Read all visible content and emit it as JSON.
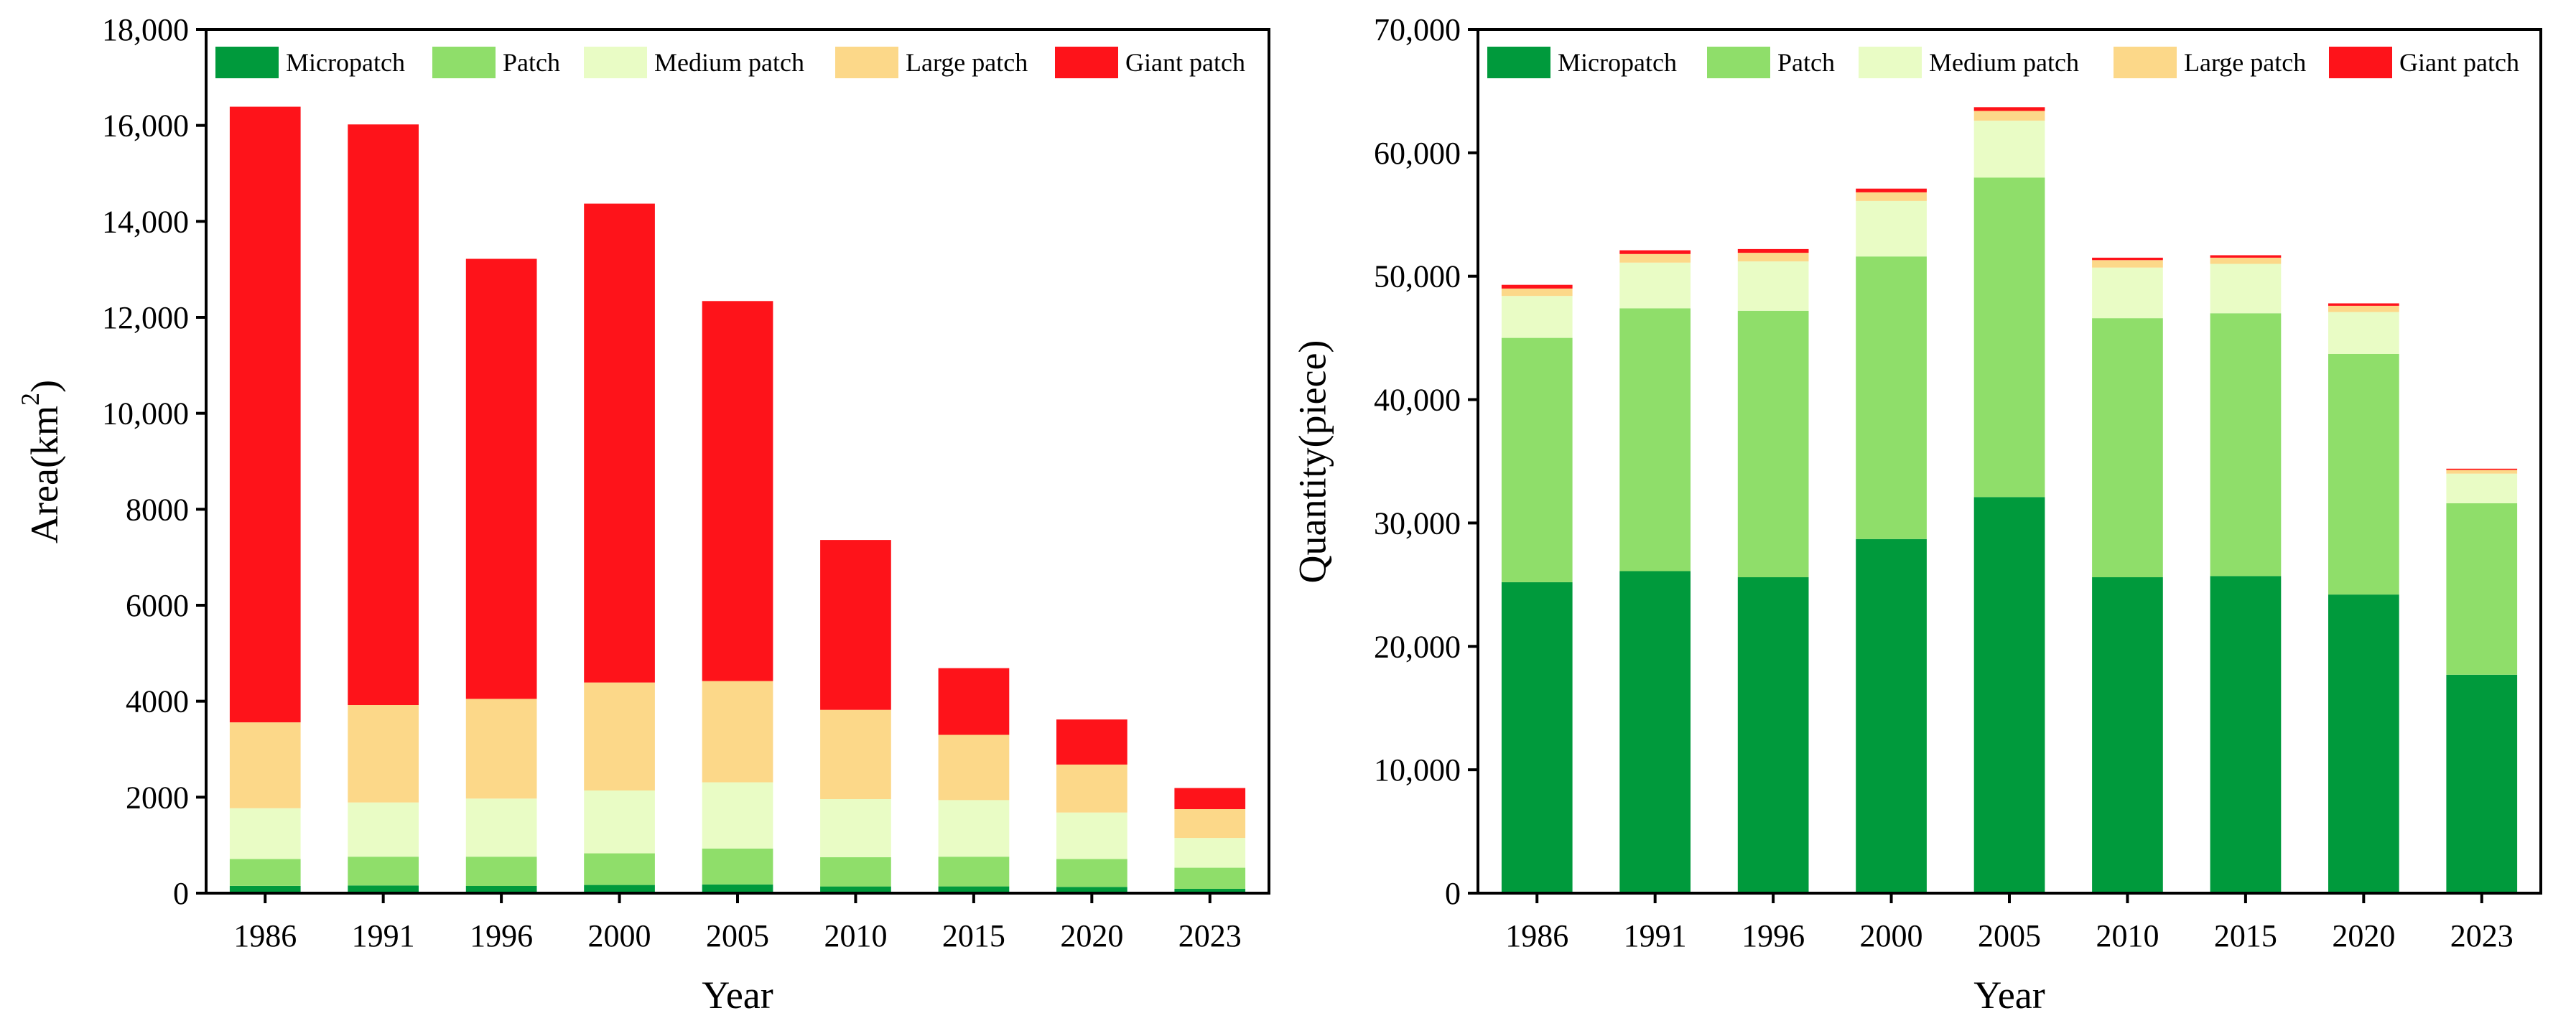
{
  "legend_names": [
    "Micropatch",
    "Patch",
    "Medium patch",
    "Large patch",
    "Giant patch"
  ],
  "colors": {
    "micropatch": "#009a3c",
    "patch": "#8fde6a",
    "medium_patch": "#e9fcc5",
    "large_patch": "#fcd889",
    "giant_patch": "#fe131a"
  },
  "chart_data": [
    {
      "type": "bar",
      "stacked": true,
      "title": "",
      "xlabel": "Year",
      "ylabel": "Area(km",
      "ylabel_superscript": "2",
      "ylabel_close": ")",
      "ylim": [
        0,
        18000
      ],
      "yticks": [
        0,
        2000,
        4000,
        6000,
        8000,
        10000,
        12000,
        14000,
        16000,
        18000
      ],
      "ytick_labels": [
        "0",
        "2000",
        "4000",
        "6000",
        "8000",
        "10,000",
        "12,000",
        "14,000",
        "16,000",
        "18,000"
      ],
      "categories": [
        "1986",
        "1991",
        "1996",
        "2000",
        "2005",
        "2010",
        "2015",
        "2020",
        "2023"
      ],
      "legend_position": "top",
      "series": [
        {
          "name": "Micropatch",
          "values": [
            150,
            160,
            150,
            170,
            180,
            140,
            140,
            130,
            90
          ]
        },
        {
          "name": "Patch",
          "values": [
            560,
            600,
            610,
            660,
            750,
            610,
            620,
            580,
            440
          ]
        },
        {
          "name": "Medium patch",
          "values": [
            1060,
            1130,
            1210,
            1310,
            1380,
            1210,
            1180,
            970,
            620
          ]
        },
        {
          "name": "Large patch",
          "values": [
            1790,
            2030,
            2080,
            2250,
            2110,
            1860,
            1360,
            1000,
            600
          ]
        },
        {
          "name": "Giant patch",
          "values": [
            12830,
            12100,
            9170,
            9980,
            7920,
            3540,
            1390,
            940,
            440
          ]
        }
      ]
    },
    {
      "type": "bar",
      "stacked": true,
      "title": "",
      "xlabel": "Year",
      "ylabel": "Quantity(piece)",
      "ylim": [
        0,
        70000
      ],
      "yticks": [
        0,
        10000,
        20000,
        30000,
        40000,
        50000,
        60000,
        70000
      ],
      "ytick_labels": [
        "0",
        "10,000",
        "20,000",
        "30,000",
        "40,000",
        "50,000",
        "60,000",
        "70,000"
      ],
      "categories": [
        "1986",
        "1991",
        "1996",
        "2000",
        "2005",
        "2010",
        "2015",
        "2020",
        "2023"
      ],
      "legend_position": "top",
      "series": [
        {
          "name": "Micropatch",
          "values": [
            25200,
            26100,
            25600,
            28700,
            32100,
            25600,
            25700,
            24200,
            17700
          ]
        },
        {
          "name": "Patch",
          "values": [
            19800,
            21300,
            21600,
            22900,
            25900,
            21000,
            21300,
            19500,
            13900
          ]
        },
        {
          "name": "Medium patch",
          "values": [
            3400,
            3700,
            4000,
            4500,
            4600,
            4100,
            4000,
            3400,
            2400
          ]
        },
        {
          "name": "Large patch",
          "values": [
            600,
            700,
            700,
            700,
            800,
            600,
            500,
            500,
            300
          ]
        },
        {
          "name": "Giant patch",
          "values": [
            300,
            300,
            300,
            300,
            300,
            200,
            200,
            200,
            100
          ]
        }
      ]
    }
  ]
}
